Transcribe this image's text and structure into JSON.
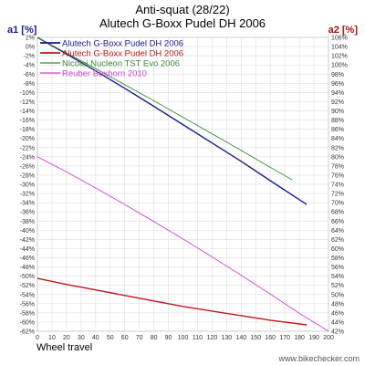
{
  "chart_data": {
    "type": "line",
    "title": "Anti-squat (28/22)",
    "subtitle": "Alutech G-Boxx Pudel DH 2006",
    "ylabel_left": "a1 [%]",
    "ylabel_right": "a2 [%]",
    "xlabel": "Wheel travel",
    "credit": "www.bikechecker.com",
    "xlim": [
      0,
      200
    ],
    "ylim_left": [
      -62,
      2
    ],
    "ylim_right": [
      42,
      106
    ],
    "x_ticks": [
      "0",
      "10",
      "20",
      "30",
      "40",
      "50",
      "60",
      "70",
      "80",
      "90",
      "100",
      "110",
      "120",
      "130",
      "140",
      "150",
      "160",
      "170",
      "180",
      "190",
      "200"
    ],
    "y_ticks_left": [
      "2%",
      "0%",
      "-2%",
      "-4%",
      "-6%",
      "-8%",
      "-10%",
      "-12%",
      "-14%",
      "-16%",
      "-18%",
      "-20%",
      "-22%",
      "-24%",
      "-26%",
      "-28%",
      "-30%",
      "-32%",
      "-34%",
      "-36%",
      "-38%",
      "-40%",
      "-42%",
      "-44%",
      "-46%",
      "-48%",
      "-50%",
      "-52%",
      "-54%",
      "-56%",
      "-58%",
      "-60%",
      "-62%"
    ],
    "y_ticks_right": [
      "106%",
      "104%",
      "102%",
      "100%",
      "98%",
      "96%",
      "94%",
      "92%",
      "90%",
      "88%",
      "86%",
      "84%",
      "82%",
      "80%",
      "78%",
      "76%",
      "74%",
      "72%",
      "70%",
      "68%",
      "66%",
      "64%",
      "62%",
      "60%",
      "58%",
      "56%",
      "54%",
      "52%",
      "50%",
      "48%",
      "46%",
      "44%",
      "42%"
    ],
    "grid": true,
    "legend_position": "top-left",
    "series": [
      {
        "name": "Alutech G-Boxx Pudel DH 2006",
        "color": "#1a1a8c",
        "axis": "left",
        "x": [
          0,
          20,
          40,
          60,
          80,
          100,
          120,
          140,
          160,
          185
        ],
        "y": [
          2,
          -1.6,
          -5.3,
          -9.1,
          -13.0,
          -17.0,
          -21.0,
          -25.0,
          -29.2,
          -34.4
        ]
      },
      {
        "name": "Alutech G-Boxx Pudel DH 2006",
        "color": "#c0181c",
        "axis": "left",
        "x": [
          0,
          20,
          40,
          60,
          80,
          100,
          120,
          140,
          160,
          185
        ],
        "y": [
          -50.5,
          -51.8,
          -53.0,
          -54.2,
          -55.4,
          -56.6,
          -57.6,
          -58.6,
          -59.6,
          -60.6
        ]
      },
      {
        "name": "Nicolai Nucleon TST Evo 2006",
        "color": "#3a8a3a",
        "axis": "left",
        "x": [
          0,
          20,
          40,
          60,
          80,
          100,
          120,
          140,
          160,
          175
        ],
        "y": [
          2,
          -1.4,
          -4.8,
          -8.3,
          -11.8,
          -15.4,
          -19.0,
          -22.6,
          -26.3,
          -29.0
        ]
      },
      {
        "name": "Reuber Boxhorn 2010",
        "color": "#cc44cc",
        "axis": "left",
        "x": [
          0,
          20,
          40,
          60,
          80,
          100,
          120,
          140,
          160,
          180,
          200
        ],
        "y": [
          -24.0,
          -27.3,
          -30.8,
          -34.4,
          -38.1,
          -41.9,
          -45.8,
          -49.8,
          -53.9,
          -58.1,
          -62.0
        ]
      }
    ]
  }
}
